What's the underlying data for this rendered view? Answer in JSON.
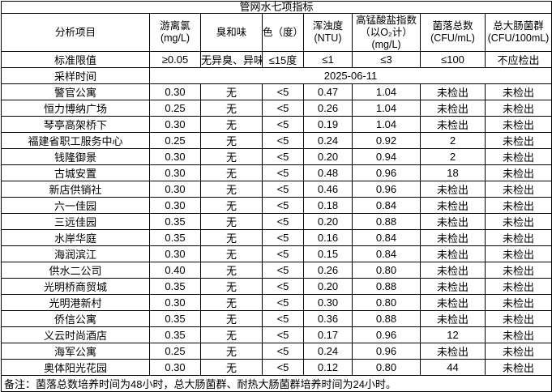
{
  "table": {
    "title": "管网水七项指标",
    "columns": [
      {
        "lines": [
          "分析项目"
        ]
      },
      {
        "lines": [
          "游离氯",
          "(mg/L)"
        ]
      },
      {
        "lines": [
          "臭和味"
        ]
      },
      {
        "lines": [
          "色（度）"
        ]
      },
      {
        "lines": [
          "浑浊度",
          "(NTU)"
        ]
      },
      {
        "lines": [
          "高锰酸盐指数",
          "（以O₂计）",
          "(mg/L)"
        ]
      },
      {
        "lines": [
          "菌落总数",
          "(CFU/mL)"
        ]
      },
      {
        "lines": [
          "总大肠菌群",
          "(CFU/100mL)"
        ]
      }
    ],
    "standard_limit": {
      "label": "标准限值",
      "values": [
        "≥0.05",
        "无异臭、异味",
        "≤15度",
        "≤1",
        "≤3",
        "≤100",
        "不应检出"
      ]
    },
    "sampling_time": {
      "label": "采样时间",
      "value": "2025-06-11"
    },
    "rows": [
      {
        "name": "警官公寓",
        "values": [
          "0.30",
          "无",
          "<5",
          "0.47",
          "1.04",
          "未检出",
          "未检出"
        ]
      },
      {
        "name": "恒力博纳广场",
        "values": [
          "0.25",
          "无",
          "<5",
          "0.26",
          "1.04",
          "未检出",
          "未检出"
        ]
      },
      {
        "name": "琴亭高架桥下",
        "values": [
          "0.30",
          "无",
          "<5",
          "0.19",
          "1.04",
          "未检出",
          "未检出"
        ]
      },
      {
        "name": "福建省职工服务中心",
        "values": [
          "0.25",
          "无",
          "<5",
          "0.24",
          "0.92",
          "2",
          "未检出"
        ]
      },
      {
        "name": "钱隆御景",
        "values": [
          "0.30",
          "无",
          "<5",
          "0.20",
          "0.94",
          "2",
          "未检出"
        ]
      },
      {
        "name": "古城安置",
        "values": [
          "0.30",
          "无",
          "<5",
          "0.48",
          "0.96",
          "18",
          "未检出"
        ]
      },
      {
        "name": "新店供销社",
        "values": [
          "0.30",
          "无",
          "<5",
          "0.46",
          "0.96",
          "未检出",
          "未检出"
        ]
      },
      {
        "name": "六一佳园",
        "values": [
          "0.30",
          "无",
          "<5",
          "0.18",
          "0.84",
          "未检出",
          "未检出"
        ]
      },
      {
        "name": "三远佳园",
        "values": [
          "0.35",
          "无",
          "<5",
          "0.20",
          "0.88",
          "未检出",
          "未检出"
        ]
      },
      {
        "name": "水岸华庭",
        "values": [
          "0.35",
          "无",
          "<5",
          "0.16",
          "0.84",
          "未检出",
          "未检出"
        ]
      },
      {
        "name": "海润滨江",
        "values": [
          "0.30",
          "无",
          "<5",
          "0.15",
          "0.84",
          "未检出",
          "未检出"
        ]
      },
      {
        "name": "供水二公司",
        "values": [
          "0.40",
          "无",
          "<5",
          "0.26",
          "0.80",
          "未检出",
          "未检出"
        ]
      },
      {
        "name": "光明桥商贸城",
        "values": [
          "0.35",
          "无",
          "<5",
          "0.20",
          "0.88",
          "未检出",
          "未检出"
        ]
      },
      {
        "name": "光明港新村",
        "values": [
          "0.30",
          "无",
          "<5",
          "0.30",
          "0.80",
          "未检出",
          "未检出"
        ]
      },
      {
        "name": "侨信公寓",
        "values": [
          "0.35",
          "无",
          "<5",
          "0.36",
          "0.88",
          "未检出",
          "未检出"
        ]
      },
      {
        "name": "义云时尚酒店",
        "values": [
          "0.35",
          "无",
          "<5",
          "0.17",
          "0.96",
          "12",
          "未检出"
        ]
      },
      {
        "name": "海军公寓",
        "values": [
          "0.25",
          "无",
          "<5",
          "0.24",
          "0.96",
          "未检出",
          "未检出"
        ]
      },
      {
        "name": "奥体阳光花园",
        "values": [
          "0.30",
          "无",
          "<5",
          "0.12",
          "0.80",
          "44",
          "未检出"
        ]
      }
    ],
    "footnote": "备注：菌落总数培养时间为48小时，总大肠菌群、耐热大肠菌群培养时间为24小时。"
  }
}
